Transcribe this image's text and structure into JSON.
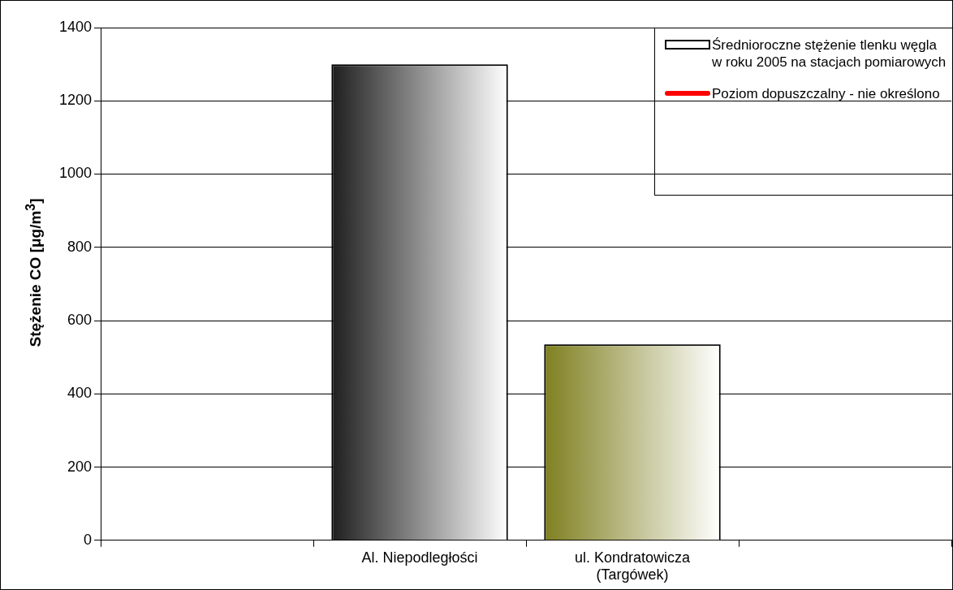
{
  "chart_data": {
    "type": "bar",
    "ylabel": "Stężenie CO [μg/m$^{3}$]",
    "categories": [
      null,
      "Al. Niepodległości",
      "ul. Kondratowicza\n(Targówek)",
      null
    ],
    "series": [
      {
        "name": "Średnioroczne stężenie tlenku węgla w roku 2005 na stacjach pomiarowych",
        "color": "#ffffff",
        "colors": [
          null,
          "#1e1e1e",
          "#7f7f20",
          null
        ],
        "values": [
          null,
          1300,
          535,
          null
        ]
      },
      {
        "type": "line",
        "name": "Poziom dopuszczalny - nie określono",
        "color": "#ff0000",
        "values": [
          null,
          null,
          null,
          null
        ]
      }
    ],
    "ylim": [
      0,
      1400
    ],
    "yticks": [
      0,
      200,
      400,
      600,
      800,
      1000,
      1200,
      1400
    ],
    "grid": "y",
    "legend": "top right"
  }
}
